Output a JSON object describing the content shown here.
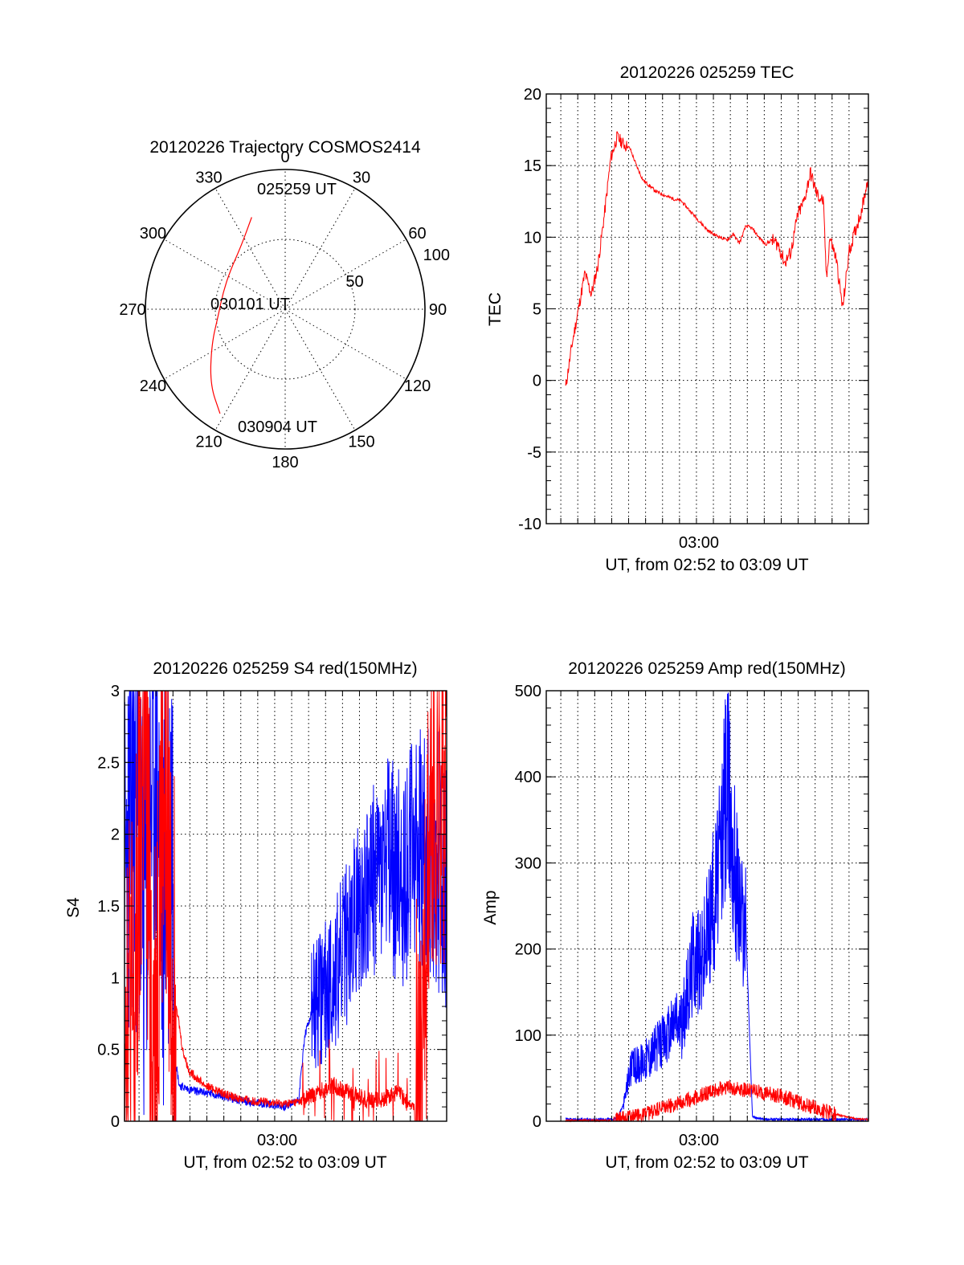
{
  "chart_data": [
    {
      "type": "polar",
      "title": "20120226 Trajectory COSMOS2414",
      "azimuth_labels": [
        "0",
        "30",
        "60",
        "90",
        "120",
        "150",
        "180",
        "210",
        "240",
        "270",
        "300",
        "330"
      ],
      "radial_labels": [
        "50",
        "100"
      ],
      "rlim": [
        0,
        100
      ],
      "grid": true,
      "trajectory_color": "#ff0000",
      "annotations": [
        "025259 UT",
        "030101 UT",
        "030904 UT"
      ],
      "trajectory": [
        {
          "az": 340,
          "r": 70
        },
        {
          "az": 325,
          "r": 55
        },
        {
          "az": 305,
          "r": 48
        },
        {
          "az": 285,
          "r": 46
        },
        {
          "az": 265,
          "r": 48
        },
        {
          "az": 245,
          "r": 58
        },
        {
          "az": 225,
          "r": 76
        },
        {
          "az": 212,
          "r": 88
        }
      ]
    },
    {
      "type": "line",
      "title": "20120226 025259 TEC",
      "xlabel": "UT, from 02:52 to 03:09 UT",
      "ylabel": "TEC",
      "x_tick_labels": [
        "03:00"
      ],
      "y_tick_labels": [
        "-10",
        "-5",
        "0",
        "5",
        "10",
        "15",
        "20"
      ],
      "ylim": [
        -10,
        20
      ],
      "grid": true,
      "series": [
        {
          "color": "#ff0000",
          "x": [
            0.06,
            0.08,
            0.1,
            0.12,
            0.14,
            0.16,
            0.18,
            0.2,
            0.22,
            0.24,
            0.26,
            0.28,
            0.3,
            0.34,
            0.38,
            0.42,
            0.46,
            0.5,
            0.52,
            0.54,
            0.56,
            0.58,
            0.6,
            0.62,
            0.64,
            0.66,
            0.68,
            0.7,
            0.72,
            0.74,
            0.76,
            0.78,
            0.8,
            0.82,
            0.84,
            0.86,
            0.87,
            0.88,
            0.9,
            0.92,
            0.94,
            0.96,
            0.98,
            1.0
          ],
          "values": [
            -0.5,
            2.5,
            5.0,
            7.5,
            6.0,
            8.0,
            11.5,
            15.5,
            17.0,
            16.5,
            16.2,
            15.0,
            14.0,
            13.2,
            12.8,
            12.5,
            11.5,
            10.5,
            10.2,
            10.0,
            9.8,
            10.2,
            9.6,
            10.8,
            10.6,
            10.0,
            9.5,
            9.8,
            9.5,
            8.2,
            9.0,
            11.5,
            12.5,
            14.5,
            13.0,
            12.5,
            7.0,
            10.0,
            8.5,
            5.0,
            9.0,
            10.5,
            12.0,
            14.3
          ]
        }
      ]
    },
    {
      "type": "line",
      "title": "20120226 025259 S4 red(150MHz)",
      "xlabel": "UT, from 02:52 to 03:09 UT",
      "ylabel": "S4",
      "x_tick_labels": [
        "03:00"
      ],
      "y_tick_labels": [
        "0",
        "0.5",
        "1",
        "1.5",
        "2",
        "2.5",
        "3"
      ],
      "ylim": [
        0,
        3
      ],
      "grid": true,
      "series": [
        {
          "color": "#0000ff",
          "x": [
            0.0,
            0.03,
            0.06,
            0.09,
            0.12,
            0.15,
            0.16,
            0.17,
            0.2,
            0.25,
            0.3,
            0.35,
            0.4,
            0.45,
            0.5,
            0.54,
            0.56,
            0.58,
            0.62,
            0.66,
            0.7,
            0.74,
            0.78,
            0.82,
            0.86,
            0.9,
            0.94,
            0.98,
            1.0
          ],
          "values": [
            1.5,
            2.4,
            1.4,
            2.6,
            1.6,
            2.2,
            0.4,
            0.25,
            0.22,
            0.2,
            0.18,
            0.15,
            0.13,
            0.12,
            0.1,
            0.15,
            0.6,
            0.75,
            0.9,
            1.05,
            1.3,
            1.55,
            1.7,
            1.8,
            1.7,
            1.9,
            1.9,
            1.8,
            1.6
          ]
        },
        {
          "color": "#ff0000",
          "x": [
            0.0,
            0.03,
            0.06,
            0.09,
            0.12,
            0.15,
            0.18,
            0.2,
            0.25,
            0.3,
            0.35,
            0.4,
            0.45,
            0.5,
            0.55,
            0.6,
            0.65,
            0.7,
            0.75,
            0.8,
            0.85,
            0.88,
            0.9,
            0.92,
            0.95,
            1.0
          ],
          "values": [
            1.2,
            0.5,
            2.8,
            0.4,
            2.5,
            1.0,
            0.5,
            0.35,
            0.25,
            0.2,
            0.16,
            0.14,
            0.13,
            0.12,
            0.14,
            0.2,
            0.25,
            0.2,
            0.15,
            0.15,
            0.2,
            0.12,
            0.1,
            0.5,
            2.0,
            2.5
          ]
        }
      ]
    },
    {
      "type": "line",
      "title": "20120226 025259 Amp red(150MHz)",
      "xlabel": "UT, from 02:52 to 03:09 UT",
      "ylabel": "Amp",
      "x_tick_labels": [
        "03:00"
      ],
      "y_tick_labels": [
        "0",
        "100",
        "200",
        "300",
        "400",
        "500"
      ],
      "ylim": [
        0,
        500
      ],
      "grid": true,
      "series": [
        {
          "color": "#0000ff",
          "x": [
            0.06,
            0.1,
            0.14,
            0.18,
            0.22,
            0.24,
            0.26,
            0.3,
            0.34,
            0.38,
            0.4,
            0.42,
            0.44,
            0.46,
            0.48,
            0.5,
            0.52,
            0.54,
            0.56,
            0.58,
            0.6,
            0.62,
            0.64,
            0.66,
            0.7,
            0.8,
            0.9,
            1.0
          ],
          "values": [
            2,
            2,
            2,
            2,
            3,
            20,
            60,
            70,
            85,
            100,
            120,
            110,
            150,
            200,
            180,
            220,
            260,
            300,
            400,
            320,
            250,
            220,
            5,
            3,
            2,
            2,
            2,
            2
          ]
        },
        {
          "color": "#ff0000",
          "x": [
            0.06,
            0.2,
            0.24,
            0.28,
            0.32,
            0.36,
            0.4,
            0.44,
            0.48,
            0.52,
            0.56,
            0.6,
            0.64,
            0.68,
            0.72,
            0.76,
            0.8,
            0.84,
            0.88,
            0.92,
            0.96,
            1.0
          ],
          "values": [
            1,
            1,
            3,
            6,
            10,
            15,
            20,
            25,
            30,
            35,
            40,
            38,
            35,
            32,
            30,
            25,
            20,
            15,
            10,
            6,
            3,
            2
          ]
        }
      ]
    }
  ]
}
